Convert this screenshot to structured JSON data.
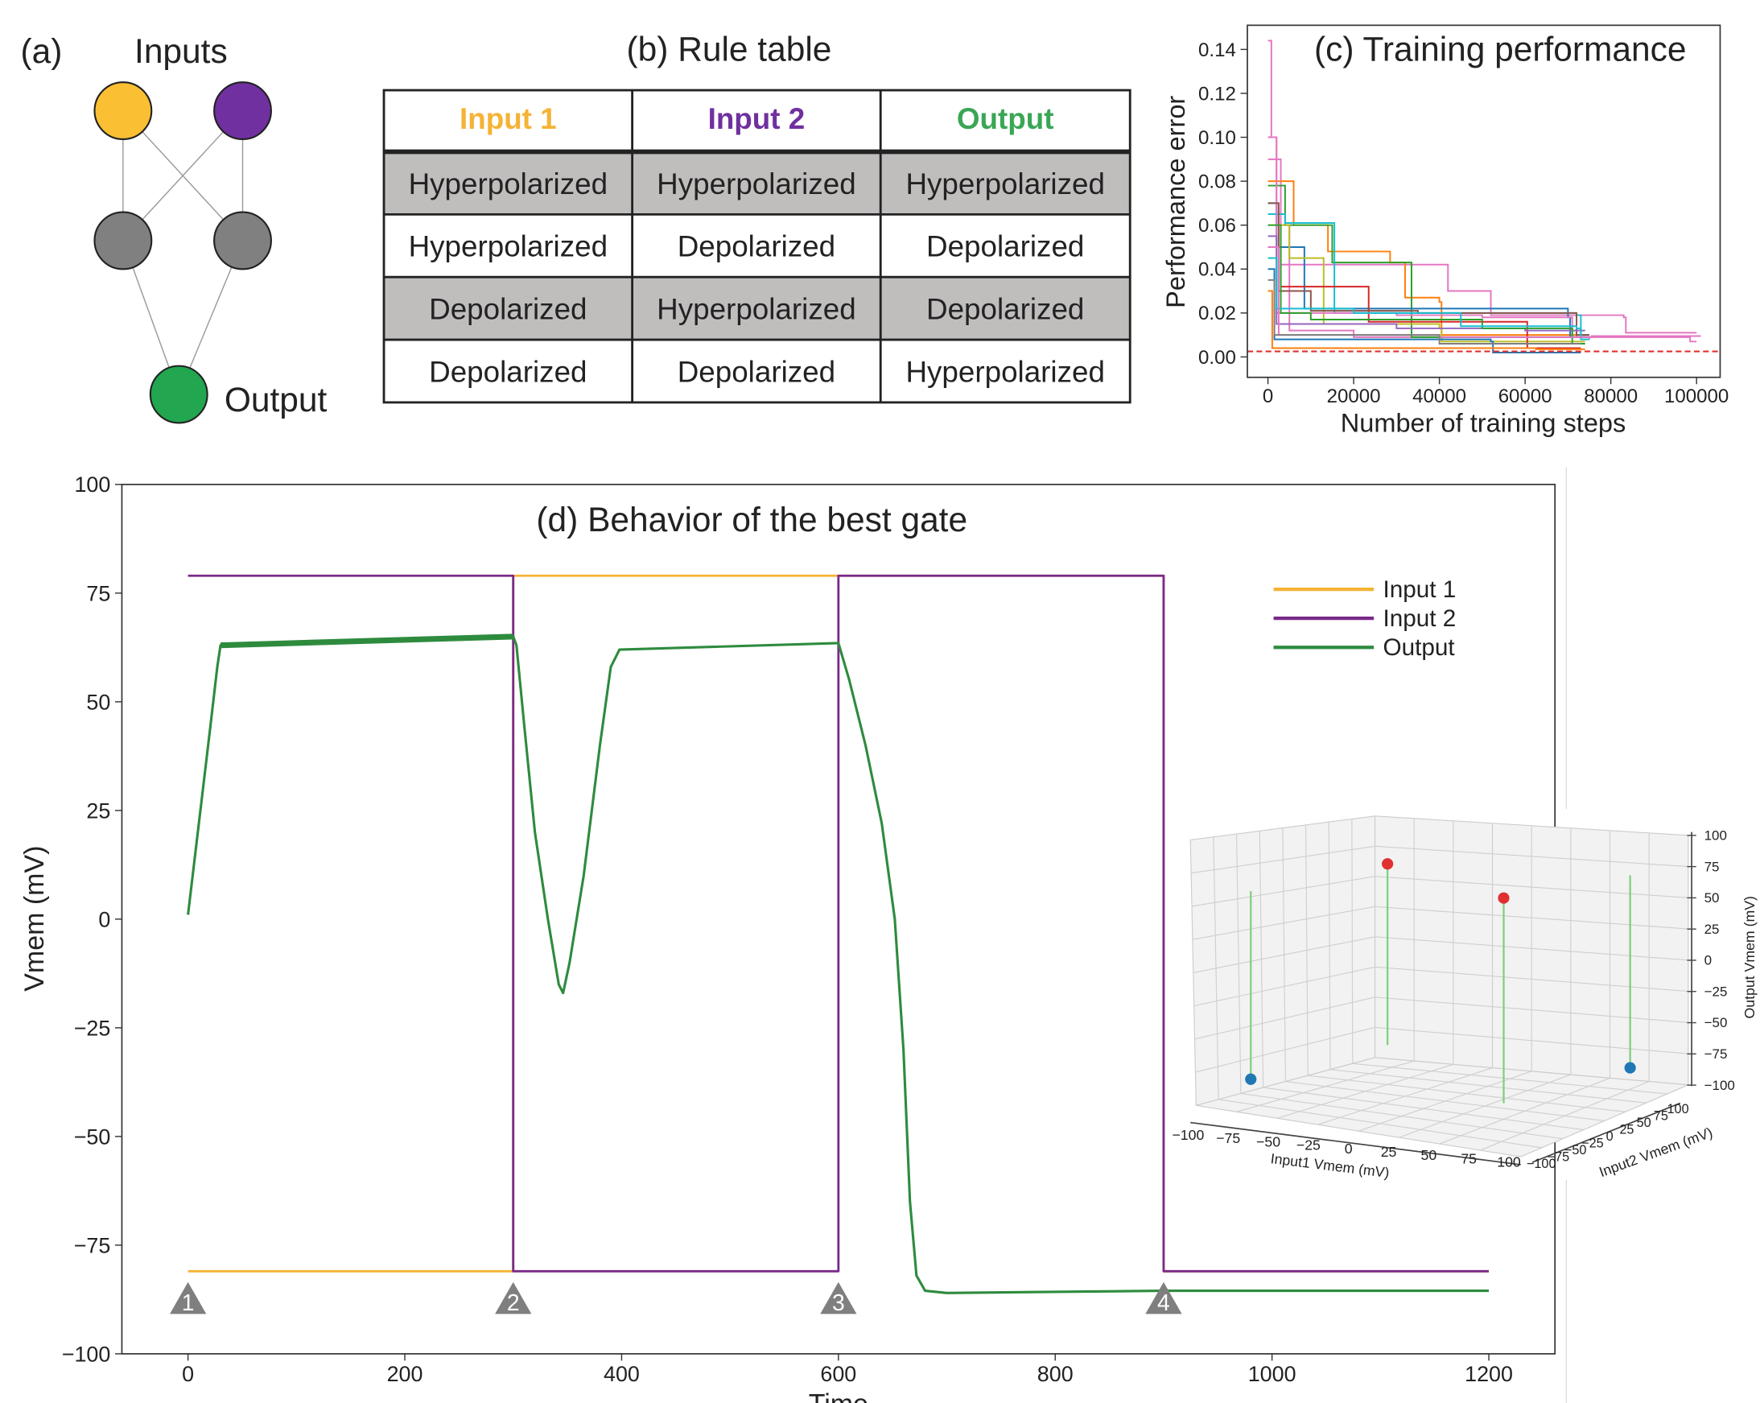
{
  "panel_a": {
    "label": "(a)",
    "inputs_label": "Inputs",
    "output_label": "Output",
    "colors": {
      "input1": "#fbbf33",
      "input2": "#7030a0",
      "hidden": "#808080",
      "output": "#22a650"
    }
  },
  "panel_b": {
    "title": "(b) Rule table",
    "headers": [
      {
        "text": "Input 1",
        "color": "#f5b335"
      },
      {
        "text": "Input 2",
        "color": "#7030a0"
      },
      {
        "text": "Output",
        "color": "#3aa655"
      }
    ],
    "rows": [
      [
        "Hyperpolarized",
        "Hyperpolarized",
        "Hyperpolarized"
      ],
      [
        "Hyperpolarized",
        "Depolarized",
        "Depolarized"
      ],
      [
        "Depolarized",
        "Hyperpolarized",
        "Depolarized"
      ],
      [
        "Depolarized",
        "Depolarized",
        "Hyperpolarized"
      ]
    ],
    "shaded_row_color": "#c0bdbd"
  },
  "chart_data": [
    {
      "type": "line",
      "title": "(c) Training performance",
      "xlabel": "Number of training steps",
      "ylabel": "Performance error",
      "xlim": [
        -4800,
        105500
      ],
      "ylim": [
        -0.0093,
        0.151
      ],
      "xticks": [
        "0",
        "20000",
        "40000",
        "60000",
        "80000",
        "100000"
      ],
      "xtick_values": [
        0,
        20000,
        40000,
        60000,
        80000,
        100000
      ],
      "yticks": [
        "0.00",
        "0.02",
        "0.04",
        "0.06",
        "0.08",
        "0.10",
        "0.12",
        "0.14"
      ],
      "ytick_values": [
        0,
        0.02,
        0.04,
        0.06,
        0.08,
        0.1,
        0.12,
        0.14
      ],
      "threshold": {
        "value": 0.0025,
        "color": "#e03030",
        "style": "dashed"
      },
      "step_lines": true,
      "series": [
        {
          "color": "#e377c2",
          "points": [
            [
              0,
              0.144
            ],
            [
              800,
              0.1
            ],
            [
              2000,
              0.06
            ],
            [
              5000,
              0.012
            ],
            [
              20000,
              0.009
            ],
            [
              75000,
              0.008
            ]
          ]
        },
        {
          "color": "#e377c2",
          "points": [
            [
              0,
              0.09
            ],
            [
              3000,
              0.042
            ],
            [
              40000,
              0.042
            ],
            [
              42000,
              0.03
            ],
            [
              52000,
              0.019
            ],
            [
              83000,
              0.018
            ],
            [
              83500,
              0.011
            ],
            [
              100000,
              0.011
            ]
          ]
        },
        {
          "color": "#ff7f0e",
          "points": [
            [
              0,
              0.08
            ],
            [
              6000,
              0.06
            ],
            [
              14000,
              0.048
            ],
            [
              28000,
              0.048
            ],
            [
              28500,
              0.043
            ],
            [
              32000,
              0.027
            ],
            [
              40000,
              0.025
            ],
            [
              40500,
              0.01
            ],
            [
              72000,
              0.009
            ]
          ]
        },
        {
          "color": "#2ca02c",
          "points": [
            [
              0,
              0.078
            ],
            [
              4000,
              0.06
            ],
            [
              14500,
              0.06
            ],
            [
              15000,
              0.043
            ],
            [
              27000,
              0.043
            ],
            [
              33000,
              0.043
            ],
            [
              33500,
              0.009
            ],
            [
              74000,
              0.009
            ]
          ]
        },
        {
          "color": "#1f77b4",
          "points": [
            [
              0,
              0.07
            ],
            [
              2000,
              0.05
            ],
            [
              8000,
              0.05
            ],
            [
              8500,
              0.022
            ],
            [
              70000,
              0.018
            ],
            [
              70500,
              0.009
            ],
            [
              75000,
              0.009
            ]
          ]
        },
        {
          "color": "#17becf",
          "points": [
            [
              0,
              0.065
            ],
            [
              4000,
              0.061
            ],
            [
              15000,
              0.061
            ],
            [
              15500,
              0.02
            ],
            [
              72000,
              0.019
            ],
            [
              73000,
              0.01
            ],
            [
              75000,
              0.01
            ]
          ]
        },
        {
          "color": "#bcbd22",
          "points": [
            [
              0,
              0.06
            ],
            [
              5000,
              0.045
            ],
            [
              12000,
              0.045
            ],
            [
              13000,
              0.015
            ],
            [
              40000,
              0.013
            ],
            [
              40500,
              0.007
            ],
            [
              74000,
              0.007
            ]
          ]
        },
        {
          "color": "#d62728",
          "points": [
            [
              0,
              0.05
            ],
            [
              3000,
              0.032
            ],
            [
              23000,
              0.032
            ],
            [
              23500,
              0.016
            ],
            [
              60000,
              0.016
            ],
            [
              60500,
              0.004
            ],
            [
              73000,
              0.004
            ]
          ]
        },
        {
          "color": "#e377c2",
          "points": [
            [
              0,
              0.1
            ],
            [
              2000,
              0.02
            ],
            [
              30000,
              0.019
            ],
            [
              50000,
              0.018
            ],
            [
              70000,
              0.018
            ],
            [
              71000,
              0.009
            ],
            [
              98000,
              0.009
            ],
            [
              98500,
              0.007
            ],
            [
              100000,
              0.007
            ]
          ]
        },
        {
          "color": "#8c564b",
          "points": [
            [
              0,
              0.07
            ],
            [
              2500,
              0.03
            ],
            [
              10000,
              0.021
            ],
            [
              35000,
              0.02
            ],
            [
              72000,
              0.01
            ],
            [
              75000,
              0.01
            ]
          ]
        },
        {
          "color": "#9467bd",
          "points": [
            [
              0,
              0.055
            ],
            [
              2000,
              0.015
            ],
            [
              30000,
              0.013
            ],
            [
              60000,
              0.012
            ],
            [
              74000,
              0.012
            ]
          ]
        },
        {
          "color": "#2ca02c",
          "points": [
            [
              0,
              0.06
            ],
            [
              3000,
              0.02
            ],
            [
              10000,
              0.017
            ],
            [
              50000,
              0.013
            ],
            [
              70000,
              0.013
            ],
            [
              71000,
              0.006
            ],
            [
              74000,
              0.006
            ]
          ]
        },
        {
          "color": "#1f77b4",
          "points": [
            [
              0,
              0.04
            ],
            [
              1500,
              0.008
            ],
            [
              52000,
              0.007
            ],
            [
              52500,
              0.002
            ],
            [
              73000,
              0.002
            ]
          ]
        },
        {
          "color": "#ff7f0e",
          "points": [
            [
              0,
              0.03
            ],
            [
              1000,
              0.004
            ],
            [
              62000,
              0.004
            ],
            [
              62500,
              0.0035
            ],
            [
              74000,
              0.0035
            ]
          ]
        },
        {
          "color": "#17becf",
          "points": [
            [
              0,
              0.045
            ],
            [
              2000,
              0.022
            ],
            [
              20000,
              0.02
            ],
            [
              45000,
              0.014
            ],
            [
              72000,
              0.013
            ],
            [
              73000,
              0.008
            ],
            [
              75000,
              0.008
            ]
          ]
        },
        {
          "color": "#e377c2",
          "points": [
            [
              0,
              0.05
            ],
            [
              2500,
              0.01
            ],
            [
              40000,
              0.009
            ],
            [
              75000,
              0.009
            ],
            [
              75500,
              0.0095
            ],
            [
              101000,
              0.0095
            ]
          ]
        },
        {
          "color": "#7f7f7f",
          "points": [
            [
              0,
              0.035
            ],
            [
              1500,
              0.01
            ],
            [
              40000,
              0.006
            ],
            [
              73000,
              0.006
            ]
          ]
        }
      ]
    },
    {
      "type": "line",
      "title": "(d) Behavior of the best gate",
      "xlabel": "Time",
      "ylabel": "Vmem (mV)",
      "xlim": [
        -61,
        1261
      ],
      "ylim": [
        -100,
        100
      ],
      "xticks": [
        "0",
        "200",
        "400",
        "600",
        "800",
        "1000",
        "1200"
      ],
      "xtick_values": [
        0,
        200,
        400,
        600,
        800,
        1000,
        1200
      ],
      "yticks": [
        "100",
        "75",
        "50",
        "25",
        "0",
        "−25",
        "−50",
        "−75",
        "−100"
      ],
      "ytick_values": [
        100,
        75,
        50,
        25,
        0,
        -25,
        -50,
        -75,
        -100
      ],
      "legend": "right",
      "series": [
        {
          "name": "Input 1",
          "color": "#f5b335",
          "points": [
            [
              0,
              -81
            ],
            [
              300,
              -81
            ],
            [
              300,
              79
            ],
            [
              600,
              79
            ],
            [
              600,
              79
            ],
            [
              900,
              79
            ],
            [
              900,
              -81
            ],
            [
              1200,
              -81
            ]
          ]
        },
        {
          "name": "Input 2",
          "color": "#7a2a8a",
          "points": [
            [
              0,
              79
            ],
            [
              300,
              79
            ],
            [
              300,
              -81
            ],
            [
              600,
              -81
            ],
            [
              600,
              79
            ],
            [
              900,
              79
            ],
            [
              900,
              -81
            ],
            [
              1200,
              -81
            ]
          ]
        },
        {
          "name": "Output",
          "color": "#2e8b3e",
          "points": [
            [
              0,
              1
            ],
            [
              10,
              22
            ],
            [
              20,
              43
            ],
            [
              27,
              58
            ],
            [
              30,
              63
            ],
            [
              300,
              65
            ],
            [
              303,
              63
            ],
            [
              310,
              45
            ],
            [
              320,
              20
            ],
            [
              332,
              0
            ],
            [
              342,
              -15
            ],
            [
              346,
              -17
            ],
            [
              352,
              -10
            ],
            [
              365,
              10
            ],
            [
              380,
              40
            ],
            [
              390,
              58
            ],
            [
              398,
              62
            ],
            [
              600,
              63.5
            ],
            [
              610,
              55
            ],
            [
              625,
              40
            ],
            [
              640,
              22
            ],
            [
              652,
              0
            ],
            [
              660,
              -30
            ],
            [
              666,
              -65
            ],
            [
              672,
              -82
            ],
            [
              680,
              -85.5
            ],
            [
              700,
              -86
            ],
            [
              900,
              -85.5
            ],
            [
              1200,
              -85.5
            ]
          ]
        }
      ],
      "markers": [
        {
          "label": "1",
          "x": 0
        },
        {
          "label": "2",
          "x": 300
        },
        {
          "label": "3",
          "x": 600
        },
        {
          "label": "4",
          "x": 900
        }
      ],
      "marker_color": "#7f7f7f"
    },
    {
      "type": "scatter3d",
      "xlabel": "Input1 Vmem (mV)",
      "ylabel": "Input2 Vmem (mV)",
      "zlabel": "Output Vmem (mV)",
      "ticks": [
        "−100",
        "−75",
        "−50",
        "−25",
        "0",
        "25",
        "50",
        "75",
        "100"
      ],
      "xlim": [
        -100,
        100
      ],
      "ylim": [
        -100,
        100
      ],
      "zlim": [
        -100,
        100
      ],
      "points": [
        {
          "x": -81,
          "y": -81,
          "z": -85.5,
          "color": "#1f77b4"
        },
        {
          "x": -81,
          "y": 79,
          "z": 65,
          "color": "#e03030"
        },
        {
          "x": 79,
          "y": -81,
          "z": 63.5,
          "color": "#e03030"
        },
        {
          "x": 79,
          "y": 79,
          "z": -85.5,
          "color": "#1f77b4"
        }
      ],
      "stem_color": "#7fd07f"
    }
  ]
}
